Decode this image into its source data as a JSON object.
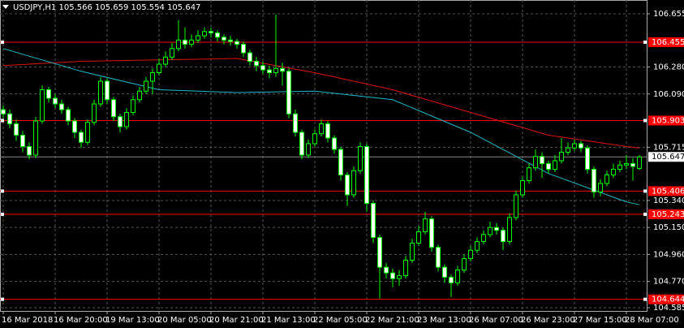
{
  "chart_data": {
    "type": "candlestick",
    "title": "USDJPY,H1  105.566 105.659 105.554 105.647",
    "categories": [
      "16 Mar 2018",
      null,
      null,
      null,
      null,
      null,
      null,
      null,
      "16 Mar 20:00",
      null,
      null,
      null,
      null,
      null,
      null,
      null,
      "19 Mar 13:00",
      null,
      null,
      null,
      null,
      null,
      null,
      null,
      "20 Mar 05:00",
      null,
      null,
      null,
      null,
      null,
      null,
      null,
      "20 Mar 21:00",
      null,
      null,
      null,
      null,
      null,
      null,
      null,
      "21 Mar 13:00",
      null,
      null,
      null,
      null,
      null,
      null,
      null,
      "22 Mar 05:00",
      null,
      null,
      null,
      null,
      null,
      null,
      null,
      "22 Mar 21:00",
      null,
      null,
      null,
      null,
      null,
      null,
      null,
      "23 Mar 13:00",
      null,
      null,
      null,
      null,
      null,
      null,
      null,
      "26 Mar 07:00",
      null,
      null,
      null,
      null,
      null,
      null,
      null,
      "26 Mar 23:00",
      null,
      null,
      null,
      null,
      null,
      null,
      null,
      "27 Mar 15:00",
      null,
      null,
      null,
      null,
      null,
      null,
      null,
      "28 Mar 07:00",
      null,
      null
    ],
    "open": [
      105.98,
      105.95,
      105.88,
      105.8,
      105.72,
      105.66,
      105.9,
      106.12,
      106.06,
      106.02,
      105.98,
      105.9,
      105.82,
      105.75,
      105.89,
      106.02,
      106.18,
      106.05,
      105.93,
      105.86,
      105.96,
      106.05,
      106.11,
      106.18,
      106.24,
      106.3,
      106.35,
      106.41,
      106.47,
      106.44,
      106.47,
      106.5,
      106.53,
      106.52,
      106.49,
      106.47,
      106.46,
      106.44,
      106.38,
      106.32,
      106.29,
      106.26,
      106.24,
      106.27,
      106.25,
      105.95,
      105.82,
      105.66,
      105.74,
      105.81,
      105.88,
      105.78,
      105.7,
      105.52,
      105.38,
      105.55,
      105.72,
      105.32,
      105.08,
      104.87,
      104.83,
      104.79,
      104.81,
      104.92,
      105.04,
      105.12,
      105.21,
      105.01,
      104.87,
      104.8,
      104.76,
      104.85,
      104.93,
      104.99,
      105.05,
      105.1,
      105.15,
      105.13,
      105.05,
      105.22,
      105.38,
      105.48,
      105.57,
      105.65,
      105.6,
      105.56,
      105.62,
      105.68,
      105.71,
      105.74,
      105.71,
      105.56,
      105.4,
      105.46,
      105.52,
      105.56,
      105.59,
      105.6,
      105.566
    ],
    "high": [
      106.01,
      105.98,
      105.91,
      105.83,
      105.75,
      105.93,
      106.15,
      106.14,
      106.09,
      106.05,
      106.0,
      105.92,
      105.84,
      105.91,
      106.05,
      106.21,
      106.2,
      106.07,
      105.95,
      105.99,
      106.08,
      106.14,
      106.21,
      106.27,
      106.34,
      106.39,
      106.45,
      106.61,
      106.56,
      106.51,
      106.54,
      106.56,
      106.56,
      106.54,
      106.51,
      106.5,
      106.48,
      106.46,
      106.4,
      106.35,
      106.32,
      106.29,
      106.65,
      106.31,
      106.27,
      105.98,
      105.84,
      105.77,
      105.84,
      105.91,
      105.9,
      105.8,
      105.72,
      105.54,
      105.58,
      105.75,
      105.74,
      105.34,
      105.1,
      104.9,
      104.86,
      104.85,
      104.95,
      105.07,
      105.16,
      105.26,
      105.23,
      105.03,
      104.89,
      104.82,
      104.88,
      104.96,
      105.02,
      105.08,
      105.13,
      105.19,
      105.18,
      105.15,
      105.25,
      105.41,
      105.51,
      105.6,
      105.7,
      105.68,
      105.62,
      105.66,
      105.78,
      105.75,
      105.77,
      105.76,
      105.73,
      105.58,
      105.49,
      105.55,
      105.6,
      105.62,
      105.66,
      105.64,
      105.659
    ],
    "low": [
      105.92,
      105.85,
      105.76,
      105.68,
      105.63,
      105.64,
      105.88,
      106.03,
      105.99,
      105.95,
      105.87,
      105.78,
      105.71,
      105.73,
      105.87,
      106.0,
      106.02,
      105.9,
      105.82,
      105.84,
      105.94,
      106.03,
      106.09,
      106.09,
      106.22,
      106.28,
      106.33,
      106.39,
      106.41,
      106.42,
      106.45,
      106.48,
      106.49,
      106.46,
      106.44,
      106.43,
      106.41,
      106.35,
      106.29,
      106.25,
      106.23,
      106.2,
      106.21,
      106.15,
      105.92,
      105.79,
      105.63,
      105.64,
      105.72,
      105.79,
      105.75,
      105.67,
      105.48,
      105.3,
      105.36,
      105.53,
      105.26,
      105.04,
      104.65,
      104.79,
      104.73,
      104.74,
      104.79,
      104.9,
      105.02,
      105.1,
      104.98,
      104.84,
      104.76,
      104.66,
      104.74,
      104.83,
      104.91,
      104.97,
      105.03,
      105.08,
      105.1,
      104.99,
      105.03,
      105.2,
      105.36,
      105.46,
      105.55,
      105.5,
      105.53,
      105.54,
      105.6,
      105.66,
      105.69,
      105.68,
      105.53,
      105.36,
      105.37,
      105.44,
      105.5,
      105.54,
      105.56,
      105.48,
      105.554
    ],
    "close": [
      105.95,
      105.88,
      105.8,
      105.72,
      105.66,
      105.9,
      106.12,
      106.06,
      106.02,
      105.98,
      105.9,
      105.82,
      105.75,
      105.89,
      106.02,
      106.18,
      106.05,
      105.93,
      105.86,
      105.96,
      106.05,
      106.11,
      106.18,
      106.24,
      106.3,
      106.35,
      106.41,
      106.47,
      106.44,
      106.47,
      106.5,
      106.53,
      106.52,
      106.49,
      106.47,
      106.46,
      106.44,
      106.38,
      106.32,
      106.29,
      106.26,
      106.24,
      106.27,
      106.25,
      105.95,
      105.82,
      105.66,
      105.74,
      105.81,
      105.88,
      105.78,
      105.7,
      105.52,
      105.38,
      105.55,
      105.72,
      105.32,
      105.08,
      104.87,
      104.83,
      104.79,
      104.81,
      104.92,
      105.04,
      105.12,
      105.21,
      105.01,
      104.87,
      104.8,
      104.76,
      104.85,
      104.93,
      104.99,
      105.05,
      105.1,
      105.15,
      105.13,
      105.05,
      105.22,
      105.38,
      105.48,
      105.57,
      105.65,
      105.6,
      105.56,
      105.62,
      105.68,
      105.71,
      105.74,
      105.71,
      105.56,
      105.4,
      105.46,
      105.52,
      105.56,
      105.59,
      105.6,
      105.58,
      105.647
    ],
    "bull_color": "#000000",
    "bear_color": "#ffffff",
    "wick_color": "#00ff00",
    "series": [
      {
        "color": "#e01010",
        "x": [
          0,
          12,
          24,
          36,
          48,
          60,
          72,
          84,
          96,
          98
        ],
        "values": [
          106.29,
          106.32,
          106.33,
          106.34,
          106.24,
          106.12,
          105.96,
          105.8,
          105.72,
          105.71
        ]
      },
      {
        "color": "#20b8c8",
        "x": [
          0,
          12,
          24,
          36,
          48,
          60,
          72,
          84,
          96,
          98
        ],
        "values": [
          106.41,
          106.25,
          106.12,
          106.1,
          106.11,
          106.05,
          105.82,
          105.53,
          105.33,
          105.31
        ]
      }
    ],
    "levels": [
      106.455,
      105.903,
      105.406,
      105.243,
      104.644
    ],
    "level_color": "#ff0000",
    "current_price": 105.647,
    "ylim": [
      104.562,
      106.752
    ],
    "yticks": [
      106.655,
      {
        "value": 106.28,
        "label": "106.280"
      },
      {
        "value": 106.09,
        "label": "106.090"
      },
      105.715,
      {
        "value": 105.34,
        "label": "105.340"
      },
      {
        "value": 105.15,
        "label": "105.150"
      },
      {
        "value": 104.96,
        "label": "104.960"
      },
      {
        "value": 104.77,
        "label": "104.770"
      },
      104.585
    ],
    "grid": true
  }
}
